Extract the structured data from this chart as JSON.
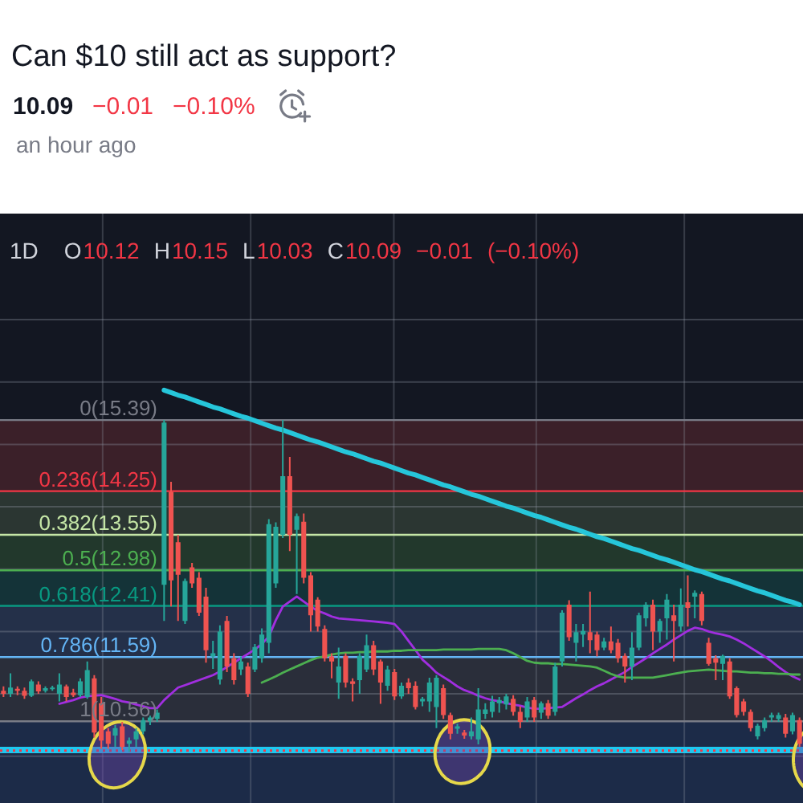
{
  "chart_data": {
    "type": "candlestick",
    "title": "Can $10 still act as support?",
    "subtitle": "an hour ago",
    "annotations": [
      "10.09",
      "−0.01",
      "−0.10%",
      "1D",
      "O",
      "10.12",
      "H",
      "10.15",
      "L",
      "10.03",
      "C",
      "10.09",
      "−0.01",
      "(−0.10%)"
    ],
    "categories": [
      null,
      null,
      null,
      null,
      null,
      null,
      null,
      null,
      null,
      null,
      null,
      null,
      null,
      null,
      null,
      null,
      null,
      null,
      null,
      null,
      null,
      null,
      null,
      null,
      null,
      null,
      null,
      null,
      null,
      null,
      null,
      null,
      null,
      null,
      null,
      null,
      null,
      null,
      null,
      null,
      null,
      null,
      null,
      null,
      null,
      null,
      null,
      null,
      null,
      null,
      null,
      null,
      null,
      null,
      null,
      null,
      null,
      null,
      null,
      null,
      null,
      null,
      null,
      null,
      null,
      null,
      null,
      null,
      null,
      null,
      null,
      null,
      null,
      null,
      null,
      null,
      null,
      null,
      null,
      null,
      null,
      null,
      null,
      null,
      null,
      null,
      null,
      null,
      null,
      null,
      null,
      null,
      null,
      null,
      null,
      null,
      null,
      null,
      null,
      null,
      null,
      null,
      null,
      null,
      null,
      null,
      null,
      null,
      null,
      null,
      null,
      null,
      null,
      null,
      null
    ],
    "ohlc": [
      [
        11.05,
        11.12,
        10.95,
        11.0
      ],
      [
        11.0,
        11.33,
        10.95,
        11.1
      ],
      [
        11.08,
        11.12,
        10.98,
        11.05
      ],
      [
        11.05,
        11.1,
        10.92,
        10.97
      ],
      [
        10.97,
        11.23,
        10.95,
        11.2
      ],
      [
        11.15,
        11.2,
        11.0,
        11.04
      ],
      [
        11.05,
        11.12,
        11.02,
        11.09
      ],
      [
        11.09,
        11.13,
        11.05,
        11.1
      ],
      [
        11.0,
        11.33,
        10.88,
        11.15
      ],
      [
        11.12,
        11.15,
        10.88,
        10.95
      ],
      [
        11.02,
        11.08,
        10.95,
        10.98
      ],
      [
        10.98,
        11.25,
        10.95,
        11.2
      ],
      [
        10.95,
        11.52,
        10.92,
        11.38
      ],
      [
        11.25,
        11.3,
        10.3,
        10.38
      ],
      [
        10.85,
        10.95,
        10.12,
        10.25
      ],
      [
        10.4,
        10.45,
        10.12,
        10.2
      ],
      [
        10.33,
        10.5,
        10.15,
        10.45
      ],
      [
        10.48,
        10.55,
        10.1,
        10.15
      ],
      [
        10.2,
        10.3,
        10.07,
        10.25
      ],
      [
        10.27,
        10.45,
        10.15,
        10.4
      ],
      [
        10.4,
        10.62,
        10.35,
        10.58
      ],
      [
        10.56,
        10.65,
        10.5,
        10.62
      ],
      [
        10.6,
        10.75,
        10.55,
        10.7
      ],
      [
        12.75,
        15.39,
        12.17,
        15.35
      ],
      [
        14.24,
        14.4,
        12.4,
        12.82
      ],
      [
        13.43,
        13.55,
        12.17,
        12.91
      ],
      [
        12.17,
        12.85,
        12.12,
        12.81
      ],
      [
        13.03,
        13.1,
        12.7,
        12.77
      ],
      [
        12.86,
        12.95,
        12.25,
        12.3
      ],
      [
        12.56,
        12.7,
        11.5,
        11.7
      ],
      [
        11.6,
        11.85,
        11.4,
        11.65
      ],
      [
        11.23,
        12.1,
        11.15,
        12.0
      ],
      [
        12.17,
        12.25,
        11.35,
        11.44
      ],
      [
        11.57,
        11.65,
        11.15,
        11.22
      ],
      [
        11.39,
        11.6,
        11.3,
        11.52
      ],
      [
        11.44,
        11.5,
        10.95,
        11.0
      ],
      [
        11.39,
        11.8,
        11.35,
        11.75
      ],
      [
        11.57,
        12.05,
        11.5,
        11.95
      ],
      [
        11.82,
        13.8,
        11.65,
        13.72
      ],
      [
        12.77,
        13.75,
        12.7,
        13.68
      ],
      [
        13.55,
        15.39,
        13.5,
        14.49
      ],
      [
        14.49,
        14.8,
        13.29,
        13.55
      ],
      [
        13.63,
        13.89,
        12.6,
        13.85
      ],
      [
        13.76,
        13.89,
        12.77,
        12.86
      ],
      [
        12.9,
        12.95,
        12.0,
        12.26
      ],
      [
        12.51,
        12.55,
        12.0,
        12.08
      ],
      [
        12.04,
        12.1,
        11.52,
        11.57
      ],
      [
        11.6,
        11.65,
        11.25,
        11.52
      ],
      [
        11.18,
        11.74,
        10.92,
        11.44
      ],
      [
        11.61,
        11.65,
        11.1,
        11.18
      ],
      [
        11.2,
        11.25,
        10.88,
        11.16
      ],
      [
        11.22,
        11.65,
        11.0,
        11.61
      ],
      [
        11.39,
        11.95,
        11.35,
        11.78
      ],
      [
        11.78,
        11.85,
        11.3,
        11.39
      ],
      [
        11.52,
        11.55,
        10.84,
        11.18
      ],
      [
        11.13,
        11.45,
        11.05,
        11.39
      ],
      [
        11.35,
        11.4,
        10.9,
        10.96
      ],
      [
        10.96,
        11.18,
        10.92,
        11.13
      ],
      [
        11.18,
        11.25,
        11.0,
        11.09
      ],
      [
        11.13,
        11.2,
        10.75,
        10.79
      ],
      [
        10.88,
        10.95,
        10.8,
        10.92
      ],
      [
        10.88,
        11.26,
        10.71,
        11.18
      ],
      [
        10.79,
        11.3,
        10.45,
        11.26
      ],
      [
        11.09,
        11.15,
        10.6,
        10.66
      ],
      [
        10.66,
        10.7,
        10.27,
        10.36
      ],
      [
        10.44,
        10.52,
        10.36,
        10.48
      ],
      [
        10.38,
        10.42,
        10.28,
        10.33
      ],
      [
        10.32,
        10.62,
        10.27,
        10.4
      ],
      [
        10.27,
        11.09,
        10.19,
        10.75
      ],
      [
        10.68,
        10.85,
        10.6,
        10.75
      ],
      [
        10.71,
        10.97,
        10.62,
        10.88
      ],
      [
        10.85,
        10.95,
        10.7,
        10.9
      ],
      [
        10.83,
        11.0,
        10.75,
        10.96
      ],
      [
        10.92,
        10.98,
        10.65,
        10.71
      ],
      [
        10.71,
        10.8,
        10.45,
        10.55
      ],
      [
        10.62,
        10.95,
        10.55,
        10.88
      ],
      [
        10.9,
        10.95,
        10.55,
        10.62
      ],
      [
        10.7,
        10.88,
        10.6,
        10.85
      ],
      [
        10.85,
        10.9,
        10.6,
        10.65
      ],
      [
        10.71,
        11.5,
        10.65,
        11.44
      ],
      [
        11.52,
        12.34,
        11.44,
        12.3
      ],
      [
        12.43,
        12.5,
        11.85,
        11.91
      ],
      [
        11.82,
        12.12,
        11.52,
        11.99
      ],
      [
        11.95,
        12.12,
        11.75,
        12.01
      ],
      [
        11.99,
        12.64,
        11.65,
        11.86
      ],
      [
        11.95,
        12.0,
        11.6,
        11.7
      ],
      [
        11.74,
        11.9,
        11.7,
        11.84
      ],
      [
        11.84,
        12.08,
        11.65,
        11.7
      ],
      [
        11.82,
        11.88,
        11.5,
        11.57
      ],
      [
        11.61,
        11.65,
        11.18,
        11.44
      ],
      [
        11.44,
        11.99,
        11.22,
        11.74
      ],
      [
        11.74,
        12.3,
        11.7,
        12.26
      ],
      [
        12.21,
        12.47,
        12.08,
        12.43
      ],
      [
        12.43,
        12.51,
        11.7,
        12.0
      ],
      [
        12.0,
        12.2,
        11.82,
        12.17
      ],
      [
        12.21,
        12.6,
        11.87,
        12.51
      ],
      [
        12.26,
        12.43,
        11.52,
        12.17
      ],
      [
        12.08,
        12.69,
        12.0,
        12.43
      ],
      [
        12.47,
        12.9,
        12.08,
        12.38
      ],
      [
        12.56,
        12.66,
        12.21,
        12.62
      ],
      [
        12.6,
        12.64,
        12.1,
        12.17
      ],
      [
        11.82,
        11.9,
        11.45,
        11.48
      ],
      [
        11.57,
        11.62,
        11.22,
        11.5
      ],
      [
        11.48,
        11.63,
        11.22,
        11.61
      ],
      [
        11.52,
        11.57,
        10.92,
        10.96
      ],
      [
        11.09,
        11.12,
        10.62,
        10.66
      ],
      [
        10.88,
        10.92,
        10.65,
        10.71
      ],
      [
        10.71,
        10.75,
        10.4,
        10.45
      ],
      [
        10.32,
        10.52,
        10.27,
        10.49
      ],
      [
        10.45,
        10.62,
        10.4,
        10.58
      ],
      [
        10.62,
        10.7,
        10.55,
        10.66
      ],
      [
        10.6,
        10.7,
        10.55,
        10.66
      ],
      [
        10.62,
        10.68,
        10.3,
        10.36
      ],
      [
        10.4,
        10.7,
        10.35,
        10.66
      ],
      [
        10.58,
        10.62,
        10.15,
        10.2
      ]
    ],
    "series": [
      {
        "type": "line",
        "color": "#a12ee0",
        "values": [
          null,
          null,
          null,
          null,
          null,
          null,
          null,
          null,
          10.84,
          10.87,
          10.9,
          10.94,
          10.96,
          10.97,
          10.98,
          10.95,
          10.92,
          10.88,
          10.86,
          10.83,
          10.8,
          10.77,
          10.77,
          10.9,
          11.0,
          11.1,
          11.14,
          11.18,
          11.22,
          11.26,
          11.3,
          11.36,
          11.43,
          11.5,
          11.57,
          11.64,
          11.71,
          11.8,
          11.92,
          12.18,
          12.4,
          12.48,
          12.56,
          12.48,
          12.4,
          12.33,
          12.29,
          12.24,
          12.21,
          12.2,
          12.19,
          12.18,
          12.17,
          12.16,
          12.15,
          12.14,
          12.12,
          12.0,
          11.85,
          11.7,
          11.55,
          11.45,
          11.34,
          11.27,
          11.2,
          11.12,
          11.06,
          11.02,
          10.97,
          10.93,
          10.9,
          10.88,
          10.85,
          10.83,
          10.81,
          10.78,
          10.76,
          10.76,
          10.77,
          10.78,
          10.79,
          10.86,
          10.93,
          10.99,
          11.06,
          11.12,
          11.17,
          11.23,
          11.29,
          11.35,
          11.43,
          11.5,
          11.57,
          11.65,
          11.72,
          11.79,
          11.87,
          11.94,
          12.01,
          12.06,
          12.04,
          12.0,
          11.97,
          11.95,
          11.92,
          11.87,
          11.81,
          11.74,
          11.67,
          11.6,
          11.52,
          11.43,
          11.35,
          11.28,
          11.23
        ]
      },
      {
        "type": "line",
        "color": "#4caf50",
        "values": [
          null,
          null,
          null,
          null,
          null,
          null,
          null,
          null,
          null,
          null,
          null,
          null,
          null,
          null,
          null,
          null,
          null,
          null,
          null,
          null,
          null,
          null,
          null,
          null,
          null,
          null,
          null,
          null,
          null,
          null,
          null,
          null,
          null,
          null,
          null,
          null,
          null,
          11.18,
          11.23,
          11.28,
          11.34,
          11.39,
          11.44,
          11.49,
          11.54,
          11.58,
          11.6,
          11.63,
          11.65,
          11.66,
          11.66,
          11.67,
          11.67,
          11.68,
          11.68,
          11.68,
          11.69,
          11.69,
          11.7,
          11.7,
          11.7,
          11.7,
          11.7,
          11.71,
          11.71,
          11.71,
          11.71,
          11.71,
          11.72,
          11.72,
          11.72,
          11.72,
          11.7,
          11.65,
          11.59,
          11.53,
          11.5,
          11.49,
          11.49,
          11.48,
          11.48,
          11.47,
          11.46,
          11.45,
          11.44,
          11.42,
          11.37,
          11.32,
          11.28,
          11.26,
          11.26,
          11.26,
          11.26,
          11.26,
          11.28,
          11.3,
          11.32,
          11.34,
          11.36,
          11.37,
          11.38,
          11.39,
          11.38,
          11.37,
          11.36,
          11.36,
          11.35,
          11.34,
          11.34,
          11.33,
          11.33,
          11.32,
          11.32,
          11.31,
          11.31
        ]
      },
      {
        "type": "line",
        "color": "#26c6da",
        "values": [
          null,
          null,
          null,
          null,
          null,
          null,
          null,
          null,
          null,
          null,
          null,
          null,
          null,
          null,
          null,
          null,
          null,
          null,
          null,
          null,
          null,
          null,
          null,
          15.87,
          15.83,
          15.79,
          15.76,
          15.72,
          15.68,
          15.64,
          15.6,
          15.57,
          15.53,
          15.49,
          15.45,
          15.42,
          15.38,
          15.34,
          15.3,
          15.26,
          15.23,
          15.19,
          15.15,
          15.11,
          15.07,
          15.04,
          15.0,
          14.96,
          14.92,
          14.88,
          14.85,
          14.81,
          14.77,
          14.73,
          14.7,
          14.66,
          14.62,
          14.58,
          14.54,
          14.51,
          14.47,
          14.43,
          14.39,
          14.35,
          14.32,
          14.28,
          14.24,
          14.2,
          14.17,
          14.13,
          14.09,
          14.05,
          14.01,
          13.98,
          13.94,
          13.9,
          13.86,
          13.83,
          13.79,
          13.75,
          13.71,
          13.67,
          13.64,
          13.6,
          13.56,
          13.52,
          13.49,
          13.45,
          13.41,
          13.37,
          13.33,
          13.3,
          13.26,
          13.22,
          13.18,
          13.15,
          13.11,
          13.07,
          13.03,
          12.99,
          12.96,
          12.92,
          12.88,
          12.84,
          12.81,
          12.77,
          12.73,
          12.69,
          12.65,
          12.62,
          12.58,
          12.54,
          12.5,
          12.47,
          12.43
        ]
      }
    ],
    "ylim": [
      9.25,
      18.7
    ],
    "yticks": [
      {
        "value": 10,
        "label": null
      },
      {
        "value": 11,
        "label": null
      },
      {
        "value": 12,
        "label": null
      },
      {
        "value": 13,
        "label": null
      },
      {
        "value": 14,
        "label": null
      },
      {
        "value": 15,
        "label": null
      },
      {
        "value": 16,
        "label": null
      },
      {
        "value": 17,
        "label": null
      }
    ],
    "bands": [
      {
        "axis": "y",
        "from": 14.25,
        "to": 15.39,
        "color": "#3b2029"
      },
      {
        "axis": "y",
        "from": 13.55,
        "to": 14.25,
        "color": "#2b3632"
      },
      {
        "axis": "y",
        "from": 12.98,
        "to": 13.55,
        "color": "#22382c"
      },
      {
        "axis": "y",
        "from": 12.41,
        "to": 12.98,
        "color": "#143338"
      },
      {
        "axis": "y",
        "from": 11.59,
        "to": 12.41,
        "color": "#243049"
      },
      {
        "axis": "y",
        "from": 10.56,
        "to": 11.59,
        "color": "#2a2e3a"
      },
      {
        "axis": "y",
        "from": 9.25,
        "to": 10.56,
        "color": "#1c2b48"
      }
    ],
    "ref_lines": [
      {
        "axis": "y",
        "value": 15.39,
        "label": "0(15.39)",
        "color": "#787b86"
      },
      {
        "axis": "y",
        "value": 14.25,
        "label": "0.236(14.25)",
        "color": "#f23645"
      },
      {
        "axis": "y",
        "value": 13.55,
        "label": "0.382(13.55)",
        "color": "#c5e6a6"
      },
      {
        "axis": "y",
        "value": 12.98,
        "label": "0.5(12.98)",
        "color": "#4caf50"
      },
      {
        "axis": "y",
        "value": 12.41,
        "label": "0.618(12.41)",
        "color": "#089981"
      },
      {
        "axis": "y",
        "value": 11.59,
        "label": "0.786(11.59)",
        "color": "#64b5f6"
      },
      {
        "axis": "y",
        "value": 10.56,
        "label": "1(10.56)",
        "color": "#787b86"
      },
      {
        "axis": "y",
        "value": 10.1,
        "color": "#1fc8f0"
      },
      {
        "axis": "y",
        "value": 10.09,
        "color": "#f23645",
        "line_style": "dotted"
      }
    ],
    "grid": true
  }
}
